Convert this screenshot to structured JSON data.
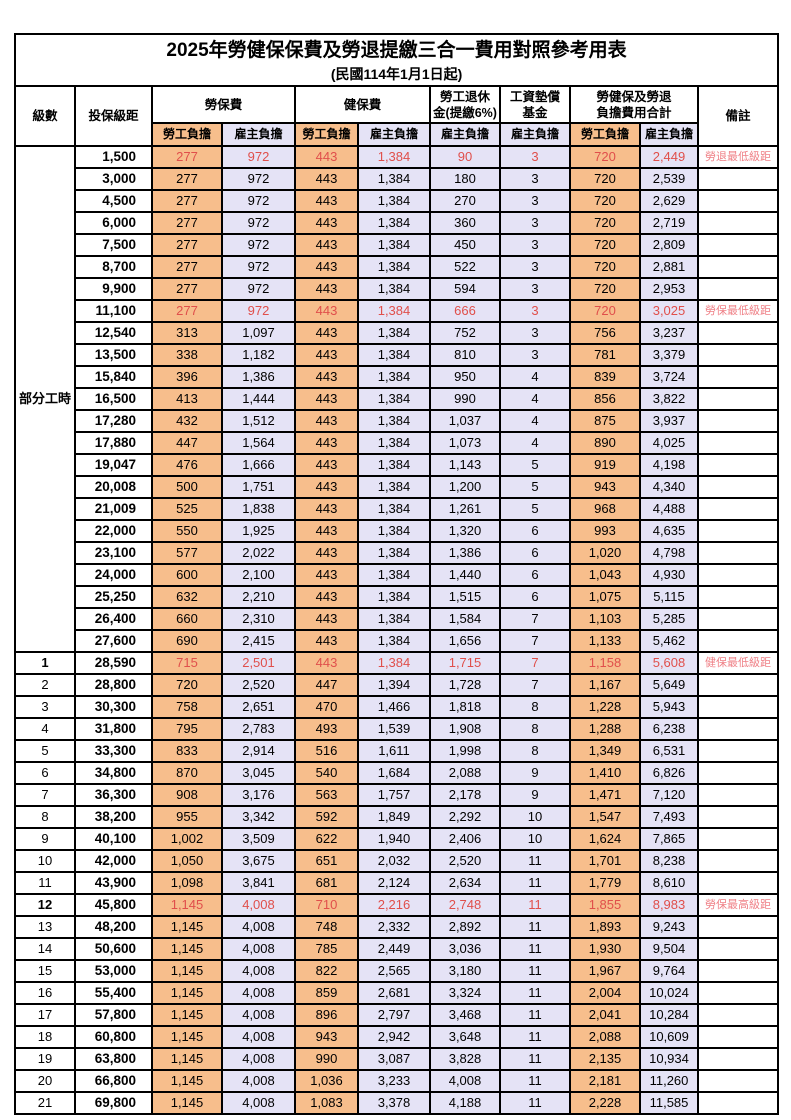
{
  "title": "2025年勞健保保費及勞退提繳三合一費用對照參考用表",
  "subtitle": "(民國114年1月1日起)",
  "header": {
    "level": "級數",
    "bracket": "投保級距",
    "labor_insurance": "勞保費",
    "health_insurance": "健保費",
    "pension_line1": "勞工退休",
    "pension_line2": "金(提繳6%)",
    "arrears_line1": "工資墊償",
    "arrears_line2": "基金",
    "total_line1": "勞健保及勞退",
    "total_line2": "負擔費用合計",
    "remark": "備註",
    "employee_share": "勞工負擔",
    "employer_share": "雇主負擔"
  },
  "part_time_label": "部分工時",
  "colors": {
    "employee_bg": "#F7BE8C",
    "employer_bg": "#E5E3F6",
    "highlight_text": "#E04F4B",
    "remark_text": "#EF7F85"
  },
  "rows": [
    {
      "level": "",
      "bracket": "1,500",
      "v": [
        "277",
        "972",
        "443",
        "1,384",
        "90",
        "3",
        "720",
        "2,449"
      ],
      "remark": "勞退最低級距",
      "hl": true
    },
    {
      "level": "",
      "bracket": "3,000",
      "v": [
        "277",
        "972",
        "443",
        "1,384",
        "180",
        "3",
        "720",
        "2,539"
      ],
      "remark": ""
    },
    {
      "level": "",
      "bracket": "4,500",
      "v": [
        "277",
        "972",
        "443",
        "1,384",
        "270",
        "3",
        "720",
        "2,629"
      ],
      "remark": ""
    },
    {
      "level": "",
      "bracket": "6,000",
      "v": [
        "277",
        "972",
        "443",
        "1,384",
        "360",
        "3",
        "720",
        "2,719"
      ],
      "remark": ""
    },
    {
      "level": "",
      "bracket": "7,500",
      "v": [
        "277",
        "972",
        "443",
        "1,384",
        "450",
        "3",
        "720",
        "2,809"
      ],
      "remark": ""
    },
    {
      "level": "",
      "bracket": "8,700",
      "v": [
        "277",
        "972",
        "443",
        "1,384",
        "522",
        "3",
        "720",
        "2,881"
      ],
      "remark": ""
    },
    {
      "level": "",
      "bracket": "9,900",
      "v": [
        "277",
        "972",
        "443",
        "1,384",
        "594",
        "3",
        "720",
        "2,953"
      ],
      "remark": ""
    },
    {
      "level": "",
      "bracket": "11,100",
      "v": [
        "277",
        "972",
        "443",
        "1,384",
        "666",
        "3",
        "720",
        "3,025"
      ],
      "remark": "勞保最低級距",
      "hl": true
    },
    {
      "level": "",
      "bracket": "12,540",
      "v": [
        "313",
        "1,097",
        "443",
        "1,384",
        "752",
        "3",
        "756",
        "3,237"
      ],
      "remark": ""
    },
    {
      "level": "",
      "bracket": "13,500",
      "v": [
        "338",
        "1,182",
        "443",
        "1,384",
        "810",
        "3",
        "781",
        "3,379"
      ],
      "remark": ""
    },
    {
      "level": "",
      "bracket": "15,840",
      "v": [
        "396",
        "1,386",
        "443",
        "1,384",
        "950",
        "4",
        "839",
        "3,724"
      ],
      "remark": ""
    },
    {
      "level": "",
      "bracket": "16,500",
      "v": [
        "413",
        "1,444",
        "443",
        "1,384",
        "990",
        "4",
        "856",
        "3,822"
      ],
      "remark": ""
    },
    {
      "level": "",
      "bracket": "17,280",
      "v": [
        "432",
        "1,512",
        "443",
        "1,384",
        "1,037",
        "4",
        "875",
        "3,937"
      ],
      "remark": ""
    },
    {
      "level": "",
      "bracket": "17,880",
      "v": [
        "447",
        "1,564",
        "443",
        "1,384",
        "1,073",
        "4",
        "890",
        "4,025"
      ],
      "remark": ""
    },
    {
      "level": "",
      "bracket": "19,047",
      "v": [
        "476",
        "1,666",
        "443",
        "1,384",
        "1,143",
        "5",
        "919",
        "4,198"
      ],
      "remark": ""
    },
    {
      "level": "",
      "bracket": "20,008",
      "v": [
        "500",
        "1,751",
        "443",
        "1,384",
        "1,200",
        "5",
        "943",
        "4,340"
      ],
      "remark": ""
    },
    {
      "level": "",
      "bracket": "21,009",
      "v": [
        "525",
        "1,838",
        "443",
        "1,384",
        "1,261",
        "5",
        "968",
        "4,488"
      ],
      "remark": ""
    },
    {
      "level": "",
      "bracket": "22,000",
      "v": [
        "550",
        "1,925",
        "443",
        "1,384",
        "1,320",
        "6",
        "993",
        "4,635"
      ],
      "remark": ""
    },
    {
      "level": "",
      "bracket": "23,100",
      "v": [
        "577",
        "2,022",
        "443",
        "1,384",
        "1,386",
        "6",
        "1,020",
        "4,798"
      ],
      "remark": ""
    },
    {
      "level": "",
      "bracket": "24,000",
      "v": [
        "600",
        "2,100",
        "443",
        "1,384",
        "1,440",
        "6",
        "1,043",
        "4,930"
      ],
      "remark": ""
    },
    {
      "level": "",
      "bracket": "25,250",
      "v": [
        "632",
        "2,210",
        "443",
        "1,384",
        "1,515",
        "6",
        "1,075",
        "5,115"
      ],
      "remark": ""
    },
    {
      "level": "",
      "bracket": "26,400",
      "v": [
        "660",
        "2,310",
        "443",
        "1,384",
        "1,584",
        "7",
        "1,103",
        "5,285"
      ],
      "remark": ""
    },
    {
      "level": "",
      "bracket": "27,600",
      "v": [
        "690",
        "2,415",
        "443",
        "1,384",
        "1,656",
        "7",
        "1,133",
        "5,462"
      ],
      "remark": ""
    },
    {
      "level": "1",
      "bracket": "28,590",
      "v": [
        "715",
        "2,501",
        "443",
        "1,384",
        "1,715",
        "7",
        "1,158",
        "5,608"
      ],
      "remark": "健保最低級距",
      "hl": true
    },
    {
      "level": "2",
      "bracket": "28,800",
      "v": [
        "720",
        "2,520",
        "447",
        "1,394",
        "1,728",
        "7",
        "1,167",
        "5,649"
      ],
      "remark": ""
    },
    {
      "level": "3",
      "bracket": "30,300",
      "v": [
        "758",
        "2,651",
        "470",
        "1,466",
        "1,818",
        "8",
        "1,228",
        "5,943"
      ],
      "remark": ""
    },
    {
      "level": "4",
      "bracket": "31,800",
      "v": [
        "795",
        "2,783",
        "493",
        "1,539",
        "1,908",
        "8",
        "1,288",
        "6,238"
      ],
      "remark": ""
    },
    {
      "level": "5",
      "bracket": "33,300",
      "v": [
        "833",
        "2,914",
        "516",
        "1,611",
        "1,998",
        "8",
        "1,349",
        "6,531"
      ],
      "remark": ""
    },
    {
      "level": "6",
      "bracket": "34,800",
      "v": [
        "870",
        "3,045",
        "540",
        "1,684",
        "2,088",
        "9",
        "1,410",
        "6,826"
      ],
      "remark": ""
    },
    {
      "level": "7",
      "bracket": "36,300",
      "v": [
        "908",
        "3,176",
        "563",
        "1,757",
        "2,178",
        "9",
        "1,471",
        "7,120"
      ],
      "remark": ""
    },
    {
      "level": "8",
      "bracket": "38,200",
      "v": [
        "955",
        "3,342",
        "592",
        "1,849",
        "2,292",
        "10",
        "1,547",
        "7,493"
      ],
      "remark": ""
    },
    {
      "level": "9",
      "bracket": "40,100",
      "v": [
        "1,002",
        "3,509",
        "622",
        "1,940",
        "2,406",
        "10",
        "1,624",
        "7,865"
      ],
      "remark": ""
    },
    {
      "level": "10",
      "bracket": "42,000",
      "v": [
        "1,050",
        "3,675",
        "651",
        "2,032",
        "2,520",
        "11",
        "1,701",
        "8,238"
      ],
      "remark": ""
    },
    {
      "level": "11",
      "bracket": "43,900",
      "v": [
        "1,098",
        "3,841",
        "681",
        "2,124",
        "2,634",
        "11",
        "1,779",
        "8,610"
      ],
      "remark": ""
    },
    {
      "level": "12",
      "bracket": "45,800",
      "v": [
        "1,145",
        "4,008",
        "710",
        "2,216",
        "2,748",
        "11",
        "1,855",
        "8,983"
      ],
      "remark": "勞保最高級距",
      "hl": true
    },
    {
      "level": "13",
      "bracket": "48,200",
      "v": [
        "1,145",
        "4,008",
        "748",
        "2,332",
        "2,892",
        "11",
        "1,893",
        "9,243"
      ],
      "remark": ""
    },
    {
      "level": "14",
      "bracket": "50,600",
      "v": [
        "1,145",
        "4,008",
        "785",
        "2,449",
        "3,036",
        "11",
        "1,930",
        "9,504"
      ],
      "remark": ""
    },
    {
      "level": "15",
      "bracket": "53,000",
      "v": [
        "1,145",
        "4,008",
        "822",
        "2,565",
        "3,180",
        "11",
        "1,967",
        "9,764"
      ],
      "remark": ""
    },
    {
      "level": "16",
      "bracket": "55,400",
      "v": [
        "1,145",
        "4,008",
        "859",
        "2,681",
        "3,324",
        "11",
        "2,004",
        "10,024"
      ],
      "remark": ""
    },
    {
      "level": "17",
      "bracket": "57,800",
      "v": [
        "1,145",
        "4,008",
        "896",
        "2,797",
        "3,468",
        "11",
        "2,041",
        "10,284"
      ],
      "remark": ""
    },
    {
      "level": "18",
      "bracket": "60,800",
      "v": [
        "1,145",
        "4,008",
        "943",
        "2,942",
        "3,648",
        "11",
        "2,088",
        "10,609"
      ],
      "remark": ""
    },
    {
      "level": "19",
      "bracket": "63,800",
      "v": [
        "1,145",
        "4,008",
        "990",
        "3,087",
        "3,828",
        "11",
        "2,135",
        "10,934"
      ],
      "remark": ""
    },
    {
      "level": "20",
      "bracket": "66,800",
      "v": [
        "1,145",
        "4,008",
        "1,036",
        "3,233",
        "4,008",
        "11",
        "2,181",
        "11,260"
      ],
      "remark": ""
    },
    {
      "level": "21",
      "bracket": "69,800",
      "v": [
        "1,145",
        "4,008",
        "1,083",
        "3,378",
        "4,188",
        "11",
        "2,228",
        "11,585"
      ],
      "remark": ""
    }
  ]
}
